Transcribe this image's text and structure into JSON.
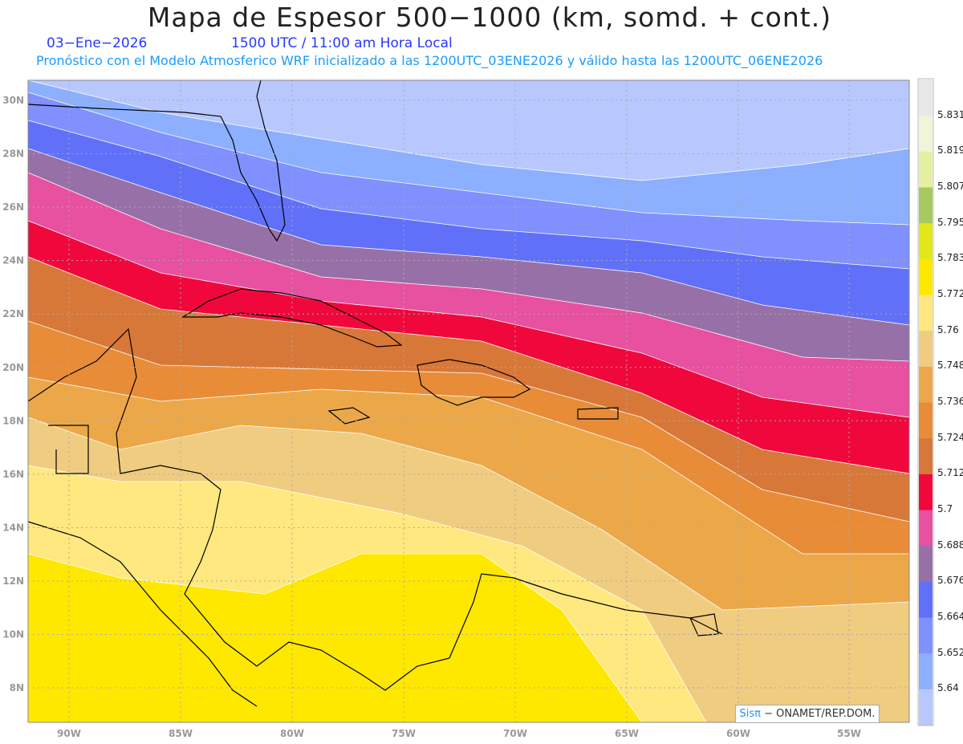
{
  "header": {
    "title": "Mapa de Espesor 500−1000 (km, somd. + cont.)",
    "date": "03−Ene−2026",
    "time": "1500 UTC / 11:00 am Hora Local",
    "subtitle": "Pronóstico con el Modelo Atmosferico WRF inicializado a las 1200UTC_03ENE2026 y válido hasta las  1200UTC_06ENE2026"
  },
  "map": {
    "lon_labels": [
      "90W",
      "85W",
      "80W",
      "75W",
      "70W",
      "65W",
      "60W"
    ],
    "lon_labels_extra": [
      "55W"
    ],
    "lat_labels": [
      "30N",
      "28N",
      "26N",
      "24N",
      "22N",
      "20N",
      "18N",
      "16N",
      "14N",
      "12N",
      "10N",
      "8N"
    ]
  },
  "colorbar": {
    "labels": [
      "5.64",
      "5.652",
      "5.664",
      "5.676",
      "5.688",
      "5.7",
      "5.712",
      "5.724",
      "5.736",
      "5.748",
      "5.76",
      "5.772",
      "5.783",
      "5.795",
      "5.807",
      "5.819",
      "5.831"
    ],
    "colors": [
      "#b8c8ff",
      "#8cb0ff",
      "#8090ff",
      "#6070f8",
      "#9870a8",
      "#e850a0",
      "#f0083c",
      "#d87838",
      "#e88c38",
      "#eca848",
      "#f0cc80",
      "#ffe880",
      "#ffe800",
      "#e0e818",
      "#a8c860",
      "#e4f0a0",
      "#f0f4d8",
      "#e8e8e8"
    ]
  },
  "credit": {
    "brand": "Sisπ",
    "text": " −  ONAMET/REP.DOM."
  }
}
